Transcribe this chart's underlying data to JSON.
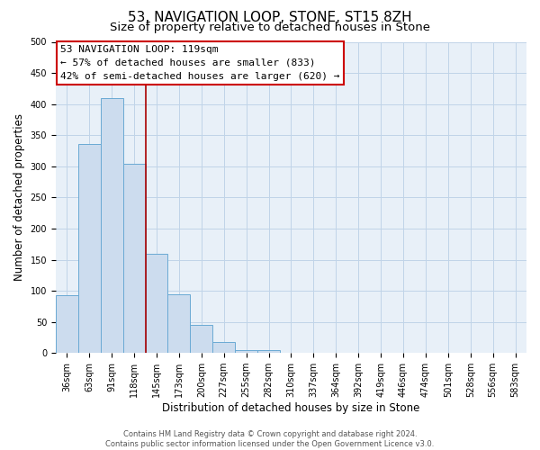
{
  "title": "53, NAVIGATION LOOP, STONE, ST15 8ZH",
  "subtitle": "Size of property relative to detached houses in Stone",
  "xlabel": "Distribution of detached houses by size in Stone",
  "ylabel": "Number of detached properties",
  "footer_line1": "Contains HM Land Registry data © Crown copyright and database right 2024.",
  "footer_line2": "Contains public sector information licensed under the Open Government Licence v3.0.",
  "bin_labels": [
    "36sqm",
    "63sqm",
    "91sqm",
    "118sqm",
    "145sqm",
    "173sqm",
    "200sqm",
    "227sqm",
    "255sqm",
    "282sqm",
    "310sqm",
    "337sqm",
    "364sqm",
    "392sqm",
    "419sqm",
    "446sqm",
    "474sqm",
    "501sqm",
    "528sqm",
    "556sqm",
    "583sqm"
  ],
  "bar_heights": [
    93,
    336,
    409,
    304,
    160,
    95,
    45,
    18,
    5,
    5,
    1,
    0,
    0,
    1,
    0,
    0,
    1,
    0,
    0,
    1,
    1
  ],
  "bar_color": "#ccdcee",
  "bar_edge_color": "#6aaad4",
  "vline_x": 3.5,
  "vline_color": "#aa0000",
  "annotation_line1": "53 NAVIGATION LOOP: 119sqm",
  "annotation_line2": "← 57% of detached houses are smaller (833)",
  "annotation_line3": "42% of semi-detached houses are larger (620) →",
  "annotation_box_edgecolor": "#cc0000",
  "ylim": [
    0,
    500
  ],
  "yticks": [
    0,
    50,
    100,
    150,
    200,
    250,
    300,
    350,
    400,
    450,
    500
  ],
  "grid_color": "#c0d4e8",
  "background_color": "#e8f0f8",
  "title_fontsize": 11,
  "subtitle_fontsize": 9.5,
  "axis_label_fontsize": 8.5,
  "tick_fontsize": 7,
  "annotation_fontsize": 8,
  "footer_fontsize": 6
}
